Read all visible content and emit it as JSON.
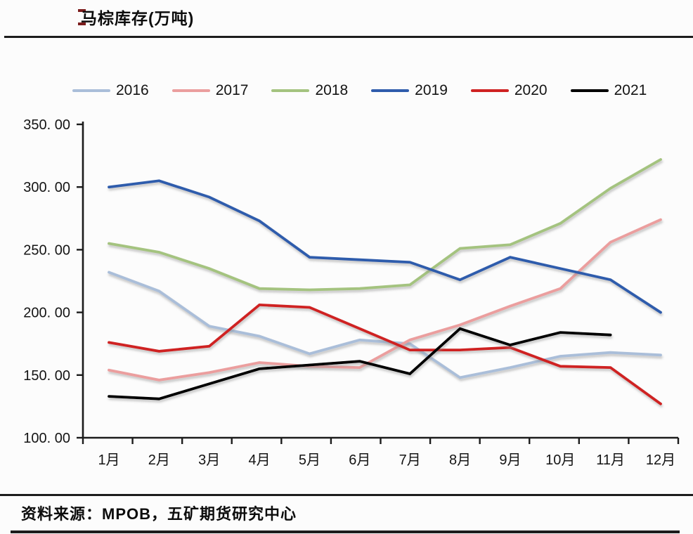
{
  "page": {
    "title": "马棕库存(万吨)",
    "source_note": "资料来源：MPOB，五矿期货研究中心"
  },
  "legend": {
    "position": "top",
    "items": [
      {
        "label": "2016",
        "color": "#aabed9"
      },
      {
        "label": "2017",
        "color": "#eb9e9e"
      },
      {
        "label": "2018",
        "color": "#a4c37f"
      },
      {
        "label": "2019",
        "color": "#2f5cac"
      },
      {
        "label": "2020",
        "color": "#cf2222"
      },
      {
        "label": "2021",
        "color": "#000000"
      }
    ]
  },
  "chart_data": {
    "type": "line",
    "title": "马棕库存(万吨)",
    "xlabel": "",
    "ylabel": "",
    "categories": [
      "1月",
      "2月",
      "3月",
      "4月",
      "5月",
      "6月",
      "7月",
      "8月",
      "9月",
      "10月",
      "11月",
      "12月"
    ],
    "series": [
      {
        "name": "2016",
        "color": "#aabed9",
        "values": [
          232,
          217,
          189,
          181,
          167,
          178,
          175,
          148,
          156,
          165,
          168,
          166
        ]
      },
      {
        "name": "2017",
        "color": "#eb9e9e",
        "values": [
          154,
          146,
          152,
          160,
          157,
          156,
          178,
          190,
          205,
          219,
          256,
          274
        ]
      },
      {
        "name": "2018",
        "color": "#a4c37f",
        "values": [
          255,
          248,
          235,
          219,
          218,
          219,
          222,
          251,
          254,
          271,
          299,
          322
        ]
      },
      {
        "name": "2019",
        "color": "#2f5cac",
        "values": [
          300,
          305,
          292,
          273,
          244,
          242,
          240,
          226,
          244,
          235,
          226,
          200
        ]
      },
      {
        "name": "2020",
        "color": "#cf2222",
        "values": [
          176,
          169,
          173,
          206,
          204,
          187,
          170,
          170,
          172,
          157,
          156,
          127
        ]
      },
      {
        "name": "2021",
        "color": "#000000",
        "values": [
          133,
          131,
          143,
          155,
          158,
          161,
          151,
          187,
          174,
          184,
          182,
          null
        ]
      }
    ],
    "ylim": [
      100,
      350
    ],
    "y_tick_step": 50,
    "y_tick_labels": [
      "350. 00",
      "300. 00",
      "250. 00",
      "200. 00",
      "150. 00",
      "100. 00"
    ],
    "grid": false,
    "legend_position": "top"
  }
}
